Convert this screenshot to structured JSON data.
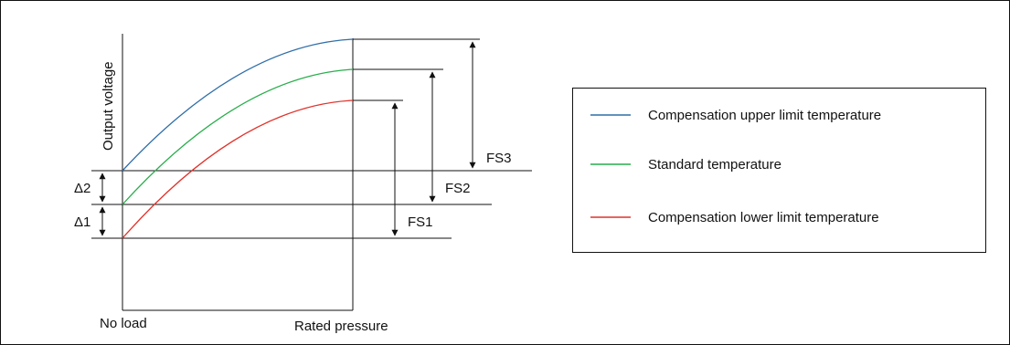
{
  "diagram": {
    "y_axis_label": "Output voltage",
    "x_axis_labels": {
      "origin": "No load",
      "rated": "Rated pressure"
    },
    "delta_labels": [
      "Δ2",
      "Δ1"
    ],
    "fs_labels": [
      "FS3",
      "FS2",
      "FS1"
    ]
  },
  "legend": {
    "items": [
      {
        "label": "Compensation upper limit temperature",
        "color": "#2f6ea8"
      },
      {
        "label": "Standard temperature",
        "color": "#27ad4a"
      },
      {
        "label": "Compensation lower limit temperature",
        "color": "#e0322b"
      }
    ]
  },
  "colors": {
    "line": "#111111",
    "border": "#111111"
  }
}
